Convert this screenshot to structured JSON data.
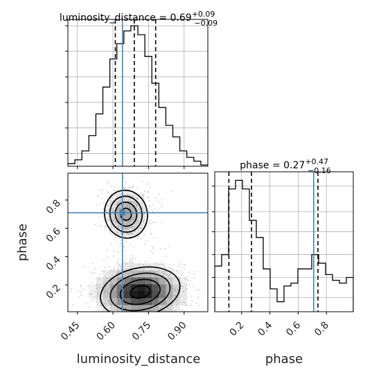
{
  "chart_data": {
    "type": "corner",
    "parameters": [
      "luminosity_distance",
      "phase"
    ],
    "truths": {
      "luminosity_distance": 0.64,
      "phase": 0.71
    },
    "panels": [
      {
        "id": "hist_luminosity_distance",
        "type": "histogram",
        "title_param": "luminosity_distance",
        "median": "0.69",
        "plus": "+0.09",
        "minus": "−0.09",
        "quantile_lines": [
          0.61,
          0.69,
          0.78
        ],
        "truth": 0.64,
        "xlim": [
          0.41,
          1.0
        ],
        "bins": [
          0.41,
          0.4395,
          0.469,
          0.4985,
          0.528,
          0.5575,
          0.587,
          0.6165,
          0.646,
          0.6755,
          0.705,
          0.7345,
          0.764,
          0.7935,
          0.823,
          0.8525,
          0.882,
          0.9115,
          0.941,
          0.9705,
          1.0
        ],
        "counts": [
          0.2,
          0.5,
          1.2,
          2.4,
          4.1,
          6.2,
          8.4,
          9.6,
          10.6,
          11.0,
          10.3,
          8.6,
          6.5,
          4.6,
          3.2,
          2.3,
          1.2,
          0.7,
          0.4,
          0.1
        ],
        "ylim": [
          0,
          11.5
        ],
        "yticks": [
          1,
          3,
          5,
          7,
          9,
          11
        ]
      },
      {
        "id": "hist_phase",
        "type": "histogram",
        "title_param": "phase",
        "median": "0.27",
        "plus": "+0.47",
        "minus": "−0.16",
        "quantile_lines": [
          0.11,
          0.27,
          0.74
        ],
        "truth": 0.71,
        "xlim": [
          0.01,
          0.99
        ],
        "bins": [
          0.01,
          0.059,
          0.108,
          0.157,
          0.206,
          0.255,
          0.304,
          0.353,
          0.402,
          0.451,
          0.5,
          0.549,
          0.598,
          0.647,
          0.696,
          0.745,
          0.794,
          0.843,
          0.892,
          0.941,
          0.99
        ],
        "counts": [
          1.6,
          2.0,
          4.3,
          4.6,
          4.3,
          3.2,
          2.6,
          1.5,
          0.8,
          0.35,
          0.9,
          1.0,
          1.5,
          1.5,
          2.0,
          1.7,
          1.3,
          1.1,
          1.0,
          1.2
        ],
        "ylim": [
          0,
          4.9
        ],
        "yticks": [
          0.5,
          1.2,
          2.0,
          2.8,
          3.5,
          4.4
        ]
      },
      {
        "id": "joint_luminosity_distance_phase",
        "type": "2d-density",
        "xlim": [
          0.41,
          1.0
        ],
        "ylim": [
          0.01,
          0.99
        ],
        "modes": [
          {
            "x": 0.715,
            "y": 0.15,
            "sx": 0.085,
            "sy": 0.085,
            "weight": 0.72
          },
          {
            "x": 0.655,
            "y": 0.7,
            "sx": 0.045,
            "sy": 0.085,
            "weight": 0.28
          }
        ],
        "contour_levels_sigma": [
          0.5,
          1.0,
          1.5,
          2.0
        ],
        "truth": {
          "x": 0.64,
          "y": 0.71
        }
      }
    ],
    "xticks": {
      "luminosity_distance": [
        "0.45",
        "0.60",
        "0.75",
        "0.90"
      ],
      "phase": [
        "0.2",
        "0.4",
        "0.6",
        "0.8"
      ]
    },
    "yticks_phase": [
      "0.2",
      "0.4",
      "0.6",
      "0.8"
    ],
    "xlabel_left": "luminosity_distance",
    "xlabel_right": "phase",
    "ylabel": "phase",
    "colors": {
      "truth": "#4682b4",
      "hist": "#000000",
      "quantile": "#000000",
      "grid": "#b0b0b0",
      "density": "#000000",
      "points": "#9a9a9a"
    }
  }
}
